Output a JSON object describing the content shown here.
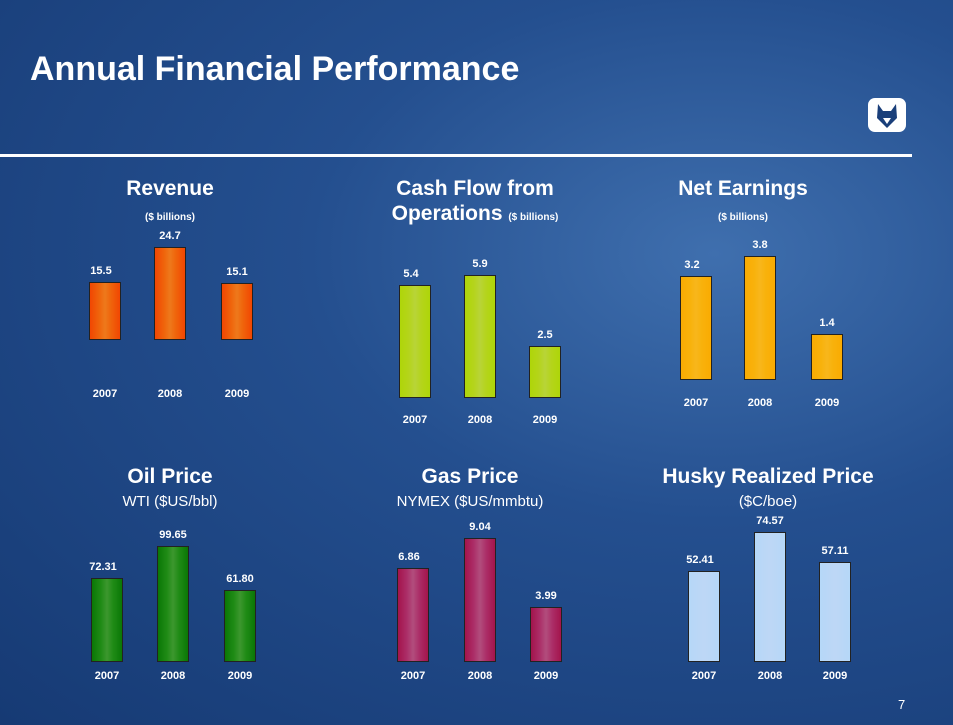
{
  "title": "Annual Financial Performance",
  "page_number": "7",
  "chart_data": [
    {
      "type": "bar",
      "title": "Revenue",
      "subtitle": "($ billions)",
      "categories": [
        "2007",
        "2008",
        "2009"
      ],
      "values": [
        15.5,
        24.7,
        15.1
      ],
      "color": "#e8580c"
    },
    {
      "type": "bar",
      "title": "Cash Flow from Operations",
      "subtitle": "($ billions)",
      "categories": [
        "2007",
        "2008",
        "2009"
      ],
      "values": [
        5.4,
        5.9,
        2.5
      ],
      "color": "#a3c61c"
    },
    {
      "type": "bar",
      "title": "Net Earnings",
      "subtitle": "($ billions)",
      "categories": [
        "2007",
        "2008",
        "2009"
      ],
      "values": [
        3.2,
        3.8,
        1.4
      ],
      "color": "#f5a00c"
    },
    {
      "type": "bar",
      "title": "Oil Price",
      "subtitle": "WTI ($US/bbl)",
      "categories": [
        "2007",
        "2008",
        "2009"
      ],
      "values": [
        72.31,
        99.65,
        61.8
      ],
      "value_labels": [
        "72.31",
        "99.65",
        "61.80"
      ],
      "color": "#1f7a16"
    },
    {
      "type": "bar",
      "title": "Gas Price",
      "subtitle": "NYMEX ($US/mmbtu)",
      "categories": [
        "2007",
        "2008",
        "2009"
      ],
      "values": [
        6.86,
        9.04,
        3.99
      ],
      "color": "#9a2c5c"
    },
    {
      "type": "bar",
      "title": "Husky Realized Price",
      "subtitle": "($C/boe)",
      "categories": [
        "2007",
        "2008",
        "2009"
      ],
      "values": [
        52.41,
        74.57,
        57.11
      ],
      "color": "#a9c9f2"
    }
  ]
}
